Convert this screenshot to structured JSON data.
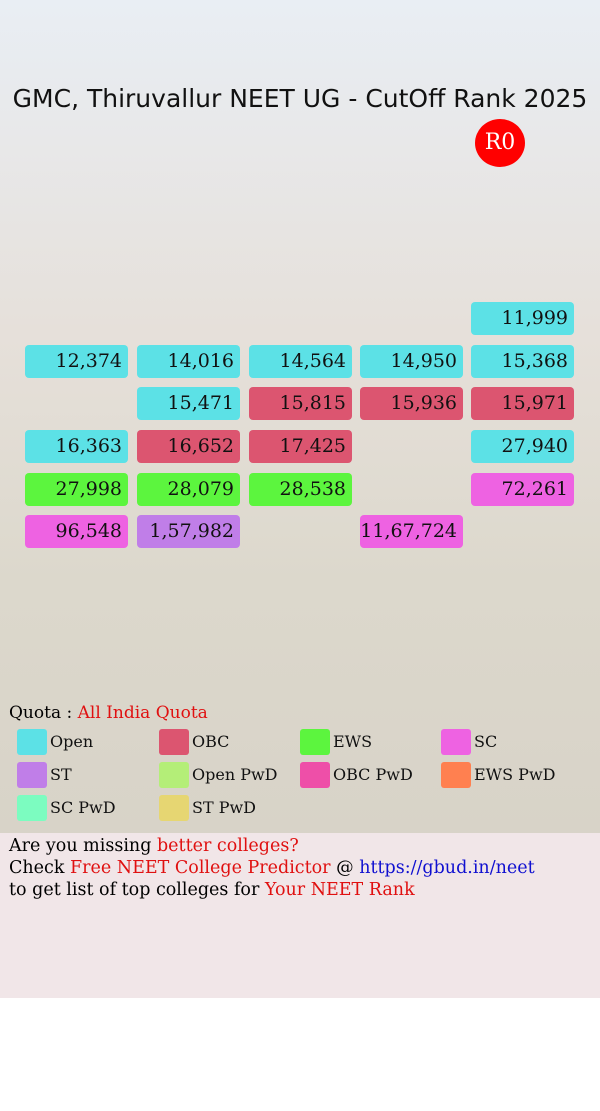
{
  "header": {
    "title": "GMC, Thiruvallur NEET UG - CutOff Rank 2025",
    "round": "R0"
  },
  "grid": {
    "rows": [
      [
        null,
        null,
        null,
        null,
        {
          "rank": "11,999",
          "quota": 0
        }
      ],
      [
        {
          "rank": "12,374",
          "quota": 0
        },
        {
          "rank": "14,016",
          "quota": 0
        },
        {
          "rank": "14,564",
          "quota": 0
        },
        {
          "rank": "14,950",
          "quota": 0
        },
        {
          "rank": "15,368",
          "quota": 0
        }
      ],
      [
        null,
        {
          "rank": "15,471",
          "quota": 0
        },
        {
          "rank": "15,815",
          "quota": 1
        },
        {
          "rank": "15,936",
          "quota": 1
        },
        {
          "rank": "15,971",
          "quota": 1
        }
      ],
      [
        {
          "rank": "16,363",
          "quota": 0
        },
        {
          "rank": "16,652",
          "quota": 1
        },
        {
          "rank": "17,425",
          "quota": 1
        },
        null,
        {
          "rank": "27,940",
          "quota": 0
        }
      ],
      [
        {
          "rank": "27,998",
          "quota": 2
        },
        {
          "rank": "28,079",
          "quota": 2
        },
        {
          "rank": "28,538",
          "quota": 2
        },
        null,
        {
          "rank": "72,261",
          "quota": 3
        }
      ],
      [
        {
          "rank": "96,548",
          "quota": 3
        },
        {
          "rank": "1,57,982",
          "quota": 4
        },
        null,
        {
          "rank": "11,67,724",
          "quota": 3
        },
        null
      ]
    ]
  },
  "quota": {
    "label": "Quota :",
    "value": "All India Quota"
  },
  "legend": [
    {
      "name": "Open",
      "color": "#5ce1e6"
    },
    {
      "name": "OBC",
      "color": "#dc5570"
    },
    {
      "name": "EWS",
      "color": "#5cf53e"
    },
    {
      "name": "SC",
      "color": "#ee62e2"
    },
    {
      "name": "ST",
      "color": "#c07ee8"
    },
    {
      "name": "Open PwD",
      "color": "#b4ee78"
    },
    {
      "name": "OBC PwD",
      "color": "#ee4fa8"
    },
    {
      "name": "EWS PwD",
      "color": "#ff8050"
    },
    {
      "name": "SC PwD",
      "color": "#7cfcc0"
    },
    {
      "name": "ST PwD",
      "color": "#e6d672"
    }
  ],
  "footer": {
    "line1": {
      "text": "Are you missing",
      "highlight": "better colleges?"
    },
    "line2": {
      "text": "Check",
      "highlight": "Free NEET College Predictor",
      "at": "@",
      "link": "https://gbud.in/neet"
    },
    "line3": {
      "text": "to get list of top colleges for",
      "highlight": "Your NEET Rank"
    }
  }
}
